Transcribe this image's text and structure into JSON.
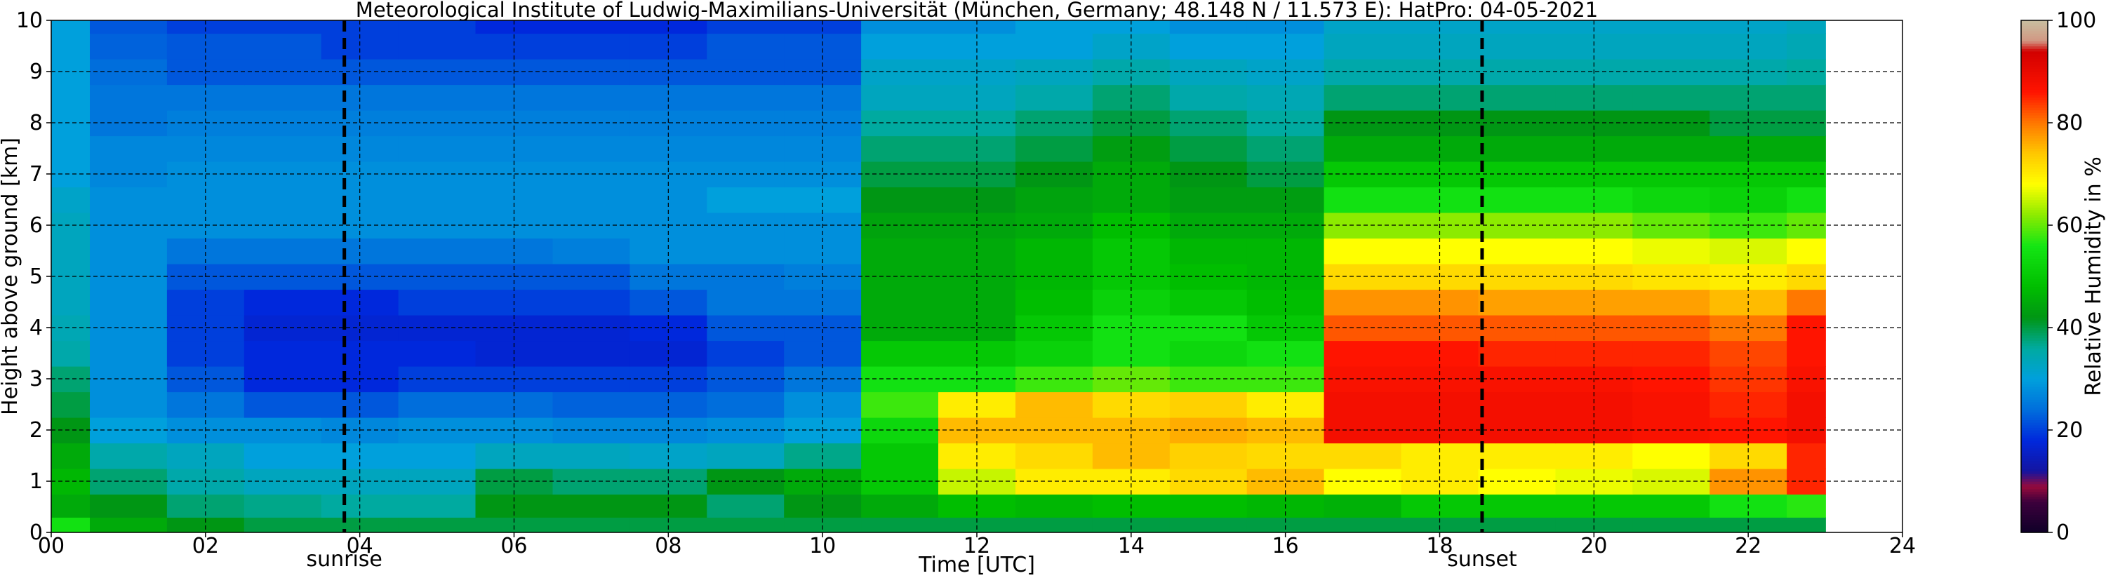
{
  "chart_data": {
    "type": "heatmap",
    "title": "Meteorological Institute of Ludwig-Maximilians-Universität (München, Germany; 48.148 N / 11.573 E):    HatPro: 04-05-2021",
    "xlabel": "Time [UTC]",
    "ylabel": "Height above ground [km]",
    "xlim": [
      0,
      24
    ],
    "ylim": [
      0,
      10
    ],
    "x_ticks": [
      0,
      2,
      4,
      6,
      8,
      10,
      12,
      14,
      16,
      18,
      20,
      22,
      24
    ],
    "x_tick_labels": [
      "00",
      "02",
      "04",
      "06",
      "08",
      "10",
      "12",
      "14",
      "16",
      "18",
      "20",
      "22",
      "24"
    ],
    "y_ticks": [
      0,
      1,
      2,
      3,
      4,
      5,
      6,
      7,
      8,
      9,
      10
    ],
    "y_tick_labels": [
      "0",
      "1",
      "2",
      "3",
      "4",
      "5",
      "6",
      "7",
      "8",
      "9",
      "10"
    ],
    "grid": true,
    "data_end_time": 23.0,
    "annotations": [
      {
        "label": "sunrise",
        "x": 3.8
      },
      {
        "label": "sunset",
        "x": 18.55
      }
    ],
    "colorbar": {
      "label": "Relative Humidity in %",
      "range": [
        0,
        100
      ],
      "ticks": [
        0,
        20,
        40,
        60,
        80,
        100
      ],
      "tick_labels": [
        "0",
        "20",
        "40",
        "60",
        "80",
        "100"
      ]
    },
    "time_points": [
      0,
      1,
      2,
      3,
      4,
      5,
      6,
      7,
      8,
      9,
      10,
      11,
      12,
      13,
      14,
      15,
      16,
      17,
      18,
      19,
      20,
      21,
      22,
      23
    ],
    "heights": [
      0.1,
      0.5,
      1.0,
      1.5,
      2.0,
      2.5,
      3.0,
      3.5,
      4.0,
      4.5,
      5.0,
      5.5,
      6.0,
      6.5,
      7.0,
      7.5,
      8.0,
      8.5,
      9.0,
      9.5,
      10.0
    ],
    "humidity": [
      [
        55,
        45,
        42,
        40,
        40,
        40,
        40,
        40,
        40,
        40,
        40,
        40,
        40,
        40,
        40,
        40,
        40,
        40,
        40,
        40,
        40,
        40,
        40,
        40
      ],
      [
        45,
        42,
        38,
        37,
        36,
        36,
        42,
        42,
        42,
        38,
        42,
        45,
        48,
        47,
        48,
        48,
        47,
        46,
        50,
        50,
        50,
        50,
        55,
        57
      ],
      [
        47,
        38,
        35,
        33,
        33,
        33,
        40,
        38,
        38,
        42,
        45,
        50,
        65,
        70,
        70,
        72,
        75,
        68,
        70,
        68,
        67,
        66,
        78,
        85
      ],
      [
        45,
        35,
        33,
        30,
        30,
        30,
        33,
        33,
        32,
        33,
        37,
        50,
        70,
        72,
        75,
        73,
        72,
        72,
        70,
        70,
        70,
        68,
        72,
        85
      ],
      [
        42,
        30,
        28,
        28,
        27,
        28,
        28,
        27,
        27,
        28,
        30,
        53,
        75,
        75,
        75,
        76,
        75,
        88,
        88,
        88,
        88,
        87,
        86,
        88
      ],
      [
        40,
        28,
        25,
        22,
        22,
        24,
        24,
        23,
        23,
        24,
        28,
        58,
        70,
        75,
        72,
        73,
        70,
        88,
        88,
        88,
        88,
        87,
        85,
        88
      ],
      [
        38,
        28,
        22,
        18,
        18,
        20,
        20,
        20,
        20,
        22,
        25,
        55,
        55,
        58,
        60,
        58,
        58,
        87,
        87,
        87,
        87,
        86,
        84,
        87
      ],
      [
        35,
        28,
        20,
        18,
        18,
        18,
        17,
        17,
        17,
        20,
        22,
        50,
        50,
        52,
        55,
        53,
        55,
        86,
        86,
        85,
        85,
        85,
        83,
        86
      ],
      [
        34,
        28,
        20,
        17,
        17,
        17,
        17,
        17,
        18,
        22,
        22,
        45,
        45,
        50,
        55,
        55,
        50,
        82,
        82,
        82,
        82,
        82,
        80,
        86
      ],
      [
        33,
        28,
        20,
        18,
        18,
        20,
        20,
        20,
        22,
        25,
        25,
        45,
        45,
        48,
        52,
        50,
        48,
        78,
        78,
        77,
        77,
        77,
        75,
        80
      ],
      [
        33,
        28,
        22,
        22,
        22,
        22,
        22,
        22,
        25,
        25,
        26,
        45,
        45,
        47,
        50,
        48,
        47,
        72,
        72,
        72,
        72,
        71,
        70,
        72
      ],
      [
        33,
        28,
        25,
        25,
        25,
        25,
        25,
        26,
        28,
        28,
        28,
        45,
        45,
        47,
        50,
        47,
        47,
        68,
        68,
        68,
        68,
        67,
        66,
        68
      ],
      [
        33,
        28,
        28,
        28,
        28,
        28,
        28,
        28,
        28,
        28,
        28,
        44,
        44,
        45,
        48,
        45,
        45,
        62,
        62,
        62,
        62,
        60,
        58,
        60
      ],
      [
        32,
        28,
        28,
        28,
        28,
        28,
        28,
        28,
        28,
        30,
        30,
        42,
        42,
        44,
        45,
        43,
        43,
        55,
        55,
        55,
        55,
        53,
        52,
        55
      ],
      [
        30,
        27,
        28,
        28,
        28,
        28,
        28,
        28,
        28,
        28,
        28,
        40,
        40,
        42,
        45,
        42,
        40,
        50,
        50,
        50,
        50,
        50,
        50,
        50
      ],
      [
        30,
        27,
        27,
        27,
        27,
        27,
        27,
        27,
        27,
        27,
        27,
        38,
        38,
        40,
        43,
        40,
        38,
        45,
        45,
        45,
        45,
        45,
        45,
        45
      ],
      [
        30,
        25,
        26,
        26,
        26,
        26,
        26,
        26,
        26,
        26,
        26,
        36,
        36,
        38,
        40,
        38,
        36,
        42,
        42,
        42,
        42,
        42,
        40,
        40
      ],
      [
        30,
        25,
        25,
        25,
        25,
        25,
        25,
        25,
        25,
        25,
        25,
        33,
        33,
        35,
        38,
        35,
        34,
        38,
        38,
        38,
        38,
        38,
        38,
        38
      ],
      [
        30,
        24,
        22,
        22,
        22,
        22,
        22,
        22,
        22,
        22,
        22,
        32,
        32,
        33,
        35,
        33,
        32,
        35,
        35,
        35,
        35,
        35,
        35,
        36
      ],
      [
        30,
        23,
        22,
        22,
        20,
        20,
        20,
        20,
        20,
        22,
        22,
        30,
        30,
        30,
        32,
        30,
        30,
        33,
        33,
        33,
        33,
        33,
        33,
        34
      ],
      [
        30,
        22,
        20,
        20,
        20,
        20,
        18,
        18,
        18,
        20,
        20,
        28,
        28,
        30,
        30,
        28,
        28,
        32,
        32,
        32,
        32,
        32,
        32,
        33
      ]
    ]
  }
}
